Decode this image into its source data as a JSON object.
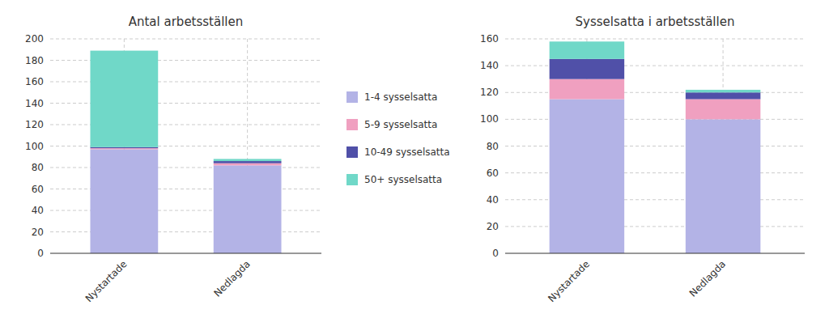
{
  "chart_data": [
    {
      "type": "bar",
      "stacked": true,
      "grid": true,
      "title": "Antal arbetsställen",
      "categories": [
        "Nystartade",
        "Nedlagda"
      ],
      "series": [
        {
          "name": "1-4 sysselsatta",
          "color": "#b3b3e6",
          "values": [
            97,
            82
          ]
        },
        {
          "name": "5-9 sysselsatta",
          "color": "#f0a0c0",
          "values": [
            1,
            2
          ]
        },
        {
          "name": "10-49 sysselsatta",
          "color": "#5050a8",
          "values": [
            1,
            2
          ]
        },
        {
          "name": "50+ sysselsatta",
          "color": "#70d8c8",
          "values": [
            90,
            2
          ]
        }
      ],
      "ylim": [
        0,
        200
      ],
      "yticks": [
        0,
        20,
        40,
        60,
        80,
        100,
        120,
        140,
        160,
        180,
        200
      ]
    },
    {
      "type": "bar",
      "stacked": true,
      "grid": true,
      "title": "Sysselsatta i arbetsställen",
      "categories": [
        "Nystartade",
        "Nedlagda"
      ],
      "series": [
        {
          "name": "1-4 sysselsatta",
          "color": "#b3b3e6",
          "values": [
            115,
            100
          ]
        },
        {
          "name": "5-9 sysselsatta",
          "color": "#f0a0c0",
          "values": [
            15,
            15
          ]
        },
        {
          "name": "10-49 sysselsatta",
          "color": "#5050a8",
          "values": [
            15,
            5
          ]
        },
        {
          "name": "50+ sysselsatta",
          "color": "#70d8c8",
          "values": [
            13,
            2
          ]
        }
      ],
      "ylim": [
        0,
        160
      ],
      "yticks": [
        0,
        20,
        40,
        60,
        80,
        100,
        120,
        140,
        160
      ]
    }
  ]
}
